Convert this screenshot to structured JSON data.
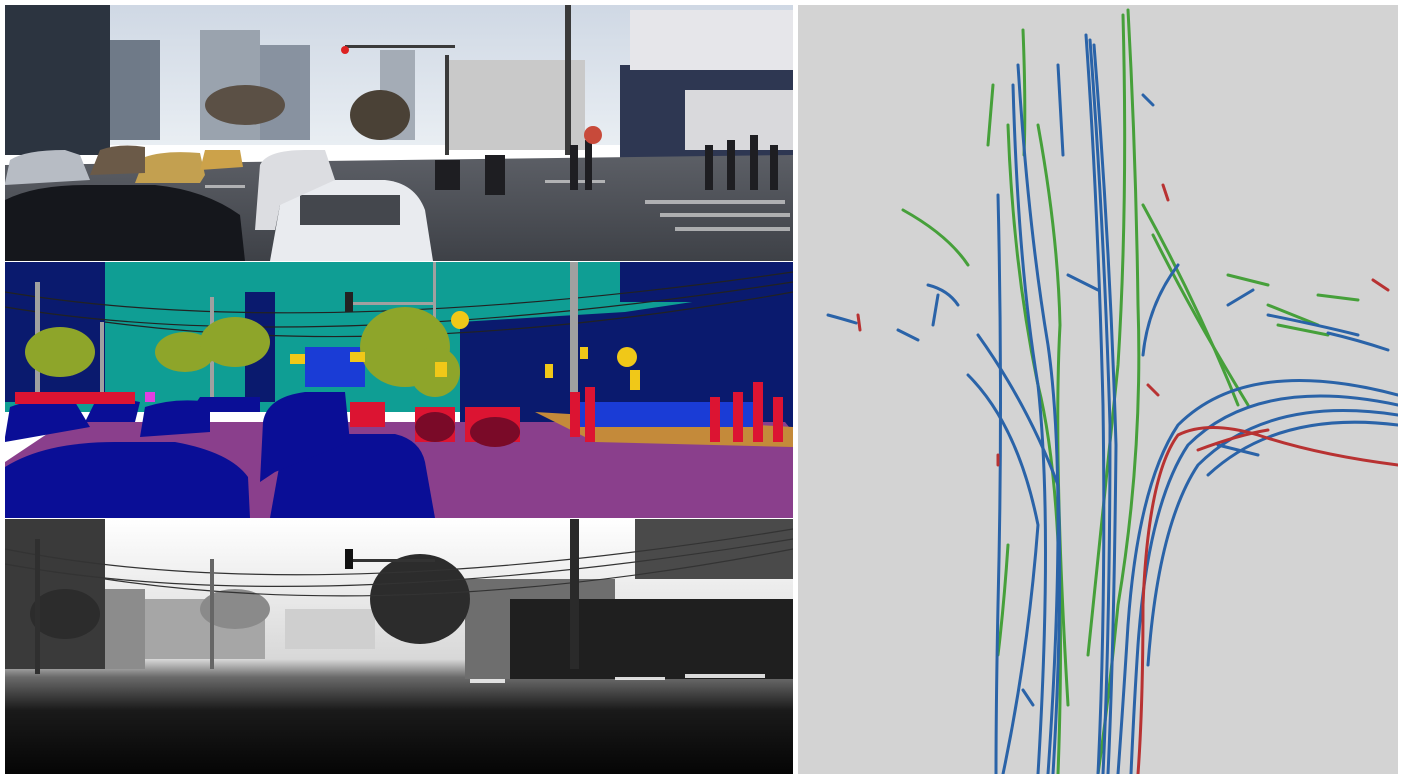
{
  "panels": {
    "rgb": {
      "kind": "camera-photo"
    },
    "segmentation": {
      "kind": "semantic-segmentation"
    },
    "depth": {
      "kind": "depth-map"
    },
    "lane_map": {
      "kind": "trajectory-map"
    }
  },
  "colors": {
    "background": "#ffffff",
    "map_background": "#d3d3d3",
    "seg_sky": "#0f9e94",
    "seg_building": "#0a1a6e",
    "seg_road": "#8a3f8c",
    "seg_car": "#0a0e96",
    "seg_vegetation": "#8ea52a",
    "seg_person": "#dc1432",
    "seg_traffic_sign": "#f0c818",
    "seg_pole": "#a0a0a0",
    "seg_sidewalk": "#c48a3a",
    "seg_fence": "#1a3cd6",
    "trajectory_blue": "#2a63a8",
    "trajectory_green": "#46a03a",
    "trajectory_red": "#b83232"
  }
}
